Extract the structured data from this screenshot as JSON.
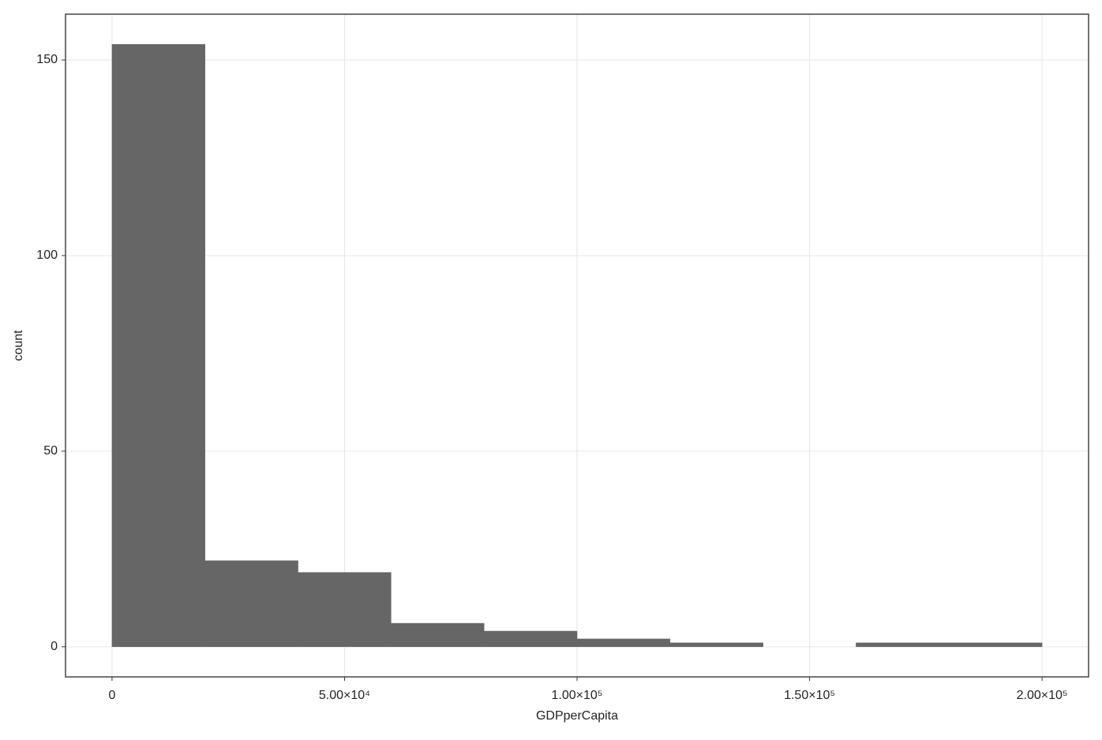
{
  "chart_data": {
    "type": "histogram",
    "x_label": "GDPperCapita",
    "y_label": "count",
    "bins": [
      0,
      20000,
      40000,
      60000,
      80000,
      100000,
      120000,
      140000,
      160000,
      180000,
      200000
    ],
    "counts": [
      154,
      22,
      19,
      6,
      4,
      2,
      1,
      0,
      1,
      1
    ],
    "color": "#666666",
    "xlim": [
      -10000,
      210000
    ],
    "ylim": [
      -7.7,
      161.7
    ],
    "xticks": [
      0,
      {
        "value": 50000,
        "label": "5.00×10⁴"
      },
      {
        "value": 100000,
        "label": "1.00×10⁵"
      },
      {
        "value": 150000,
        "label": "1.50×10⁵"
      },
      {
        "value": 200000,
        "label": "2.00×10⁵"
      }
    ],
    "yticks": [
      0,
      50,
      100,
      150
    ],
    "grid": true
  }
}
